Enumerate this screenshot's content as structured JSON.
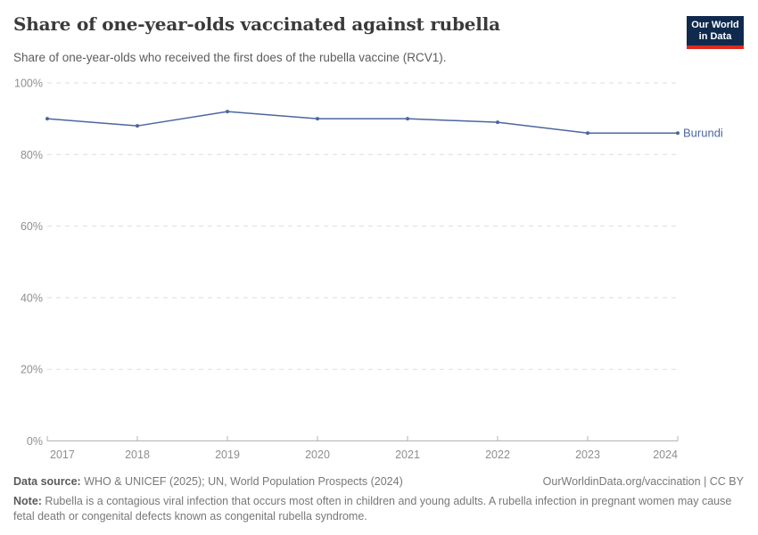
{
  "header": {
    "title": "Share of one-year-olds vaccinated against rubella",
    "subtitle": "Share of one-year-olds who received the first does of the rubella vaccine (RCV1).",
    "logo": {
      "line1": "Our World",
      "line2": "in Data"
    }
  },
  "chart_data": {
    "type": "line",
    "title": "Share of one-year-olds vaccinated against rubella",
    "x": [
      2017,
      2018,
      2019,
      2020,
      2021,
      2022,
      2023,
      2024
    ],
    "series": [
      {
        "name": "Burundi",
        "values": [
          90,
          88,
          92,
          90,
          90,
          89,
          86,
          86
        ],
        "color": "#4c669e"
      }
    ],
    "ylim": [
      0,
      100
    ],
    "yticks": [
      0,
      20,
      40,
      60,
      80,
      100
    ],
    "ytick_suffix": "%",
    "xlabel": "",
    "ylabel": "",
    "grid": "horizontal-dashed",
    "legend_position": "end-of-line-label"
  },
  "footer": {
    "source_label": "Data source:",
    "source_text": " WHO & UNICEF (2025); UN, World Population Prospects (2024)",
    "link": "OurWorldinData.org/vaccination | CC BY",
    "note_label": "Note:",
    "note_text": " Rubella is a contagious viral infection that occurs most often in children and young adults. A rubella infection in pregnant women may cause fetal death or congenital defects known as congenital rubella syndrome."
  },
  "theme": {
    "line_color": "#4c669e",
    "title_color": "#3a3a3a",
    "subtitle_color": "#5c5c5c",
    "axis_text_color": "#8f8f8f",
    "grid_color": "#dedede",
    "axis_line_color": "#b3b3b3",
    "logo_bg_color": "#102a4e",
    "logo_accent_color": "#dc2a1e",
    "footer_text_color": "#787878"
  }
}
